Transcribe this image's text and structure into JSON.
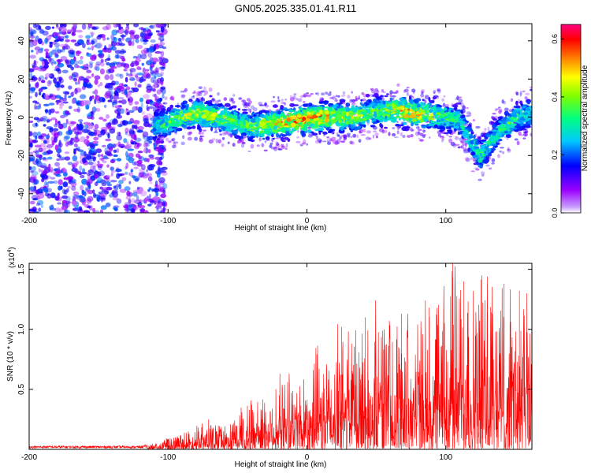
{
  "title": "GN05.2025.335.01.41.R11",
  "chart_data": [
    {
      "type": "heatmap",
      "xlabel": "Height of straight line (km)",
      "ylabel": "Frequency (Hz)",
      "xlim": [
        -200,
        162
      ],
      "ylim": [
        -50,
        49
      ],
      "xticks": [
        -200,
        -100,
        0,
        100
      ],
      "xtick_labels": [
        "-200",
        "-100",
        "0",
        "100"
      ],
      "yticks": [
        -40,
        -20,
        0,
        20,
        40
      ],
      "ytick_labels": [
        "-40",
        "-20",
        "0",
        "20",
        "40"
      ],
      "colorbar": {
        "label": "Normalized spectral amplitude",
        "range": [
          0.0,
          0.65
        ],
        "ticks": [
          0.0,
          0.2,
          0.4,
          0.6
        ],
        "tick_labels": [
          "0.0",
          "0.2",
          "0.4",
          "0.6"
        ],
        "colormap": [
          "#ffffff",
          "#9c00ff",
          "#0000ff",
          "#00c8ff",
          "#00ff80",
          "#80ff00",
          "#ffff00",
          "#ff8000",
          "#ff0000",
          "#ff0080"
        ]
      },
      "noise_region": {
        "x": [
          -200,
          -110
        ],
        "y": [
          -50,
          49
        ],
        "level": 0.12
      },
      "signal_trace": {
        "x": [
          -110,
          -100,
          -90,
          -80,
          -70,
          -60,
          -50,
          -40,
          -30,
          -20,
          -10,
          0,
          10,
          20,
          30,
          40,
          50,
          60,
          70,
          80,
          90,
          100,
          110,
          115,
          120,
          125,
          130,
          135,
          140,
          145,
          150,
          155,
          162
        ],
        "y": [
          -4,
          -3,
          0,
          2,
          1,
          -1,
          -3,
          -5,
          -4,
          -3,
          -2,
          -1,
          0,
          0,
          0,
          1,
          3,
          4,
          3,
          2,
          1,
          0,
          -2,
          -8,
          -15,
          -20,
          -15,
          -10,
          -6,
          -4,
          -1,
          1,
          2
        ],
        "peak_amplitude": [
          0.3,
          0.35,
          0.4,
          0.45,
          0.4,
          0.4,
          0.35,
          0.4,
          0.45,
          0.5,
          0.55,
          0.6,
          0.55,
          0.45,
          0.45,
          0.4,
          0.35,
          0.45,
          0.55,
          0.5,
          0.4,
          0.35,
          0.3,
          0.3,
          0.3,
          0.35,
          0.3,
          0.3,
          0.3,
          0.35,
          0.35,
          0.3,
          0.3
        ]
      }
    },
    {
      "type": "line",
      "xlabel": "Height of straight line (km)",
      "ylabel": "SNR (10 * v/v)",
      "y_multiplier_label": "(x10",
      "y_multiplier_exponent": "4",
      "xlim": [
        -200,
        162
      ],
      "ylim": [
        0,
        15500
      ],
      "xticks": [
        -200,
        -100,
        0,
        100
      ],
      "xtick_labels": [
        "-200",
        "-100",
        "0",
        "100"
      ],
      "yticks": [
        5000,
        10000,
        15000
      ],
      "ytick_labels": [
        "0.5",
        "1.0",
        "1.5"
      ],
      "series_color": "#ff0000",
      "envelope": {
        "x": [
          -200,
          -120,
          -110,
          -100,
          -90,
          -80,
          -70,
          -60,
          -50,
          -45,
          -40,
          -30,
          -20,
          -10,
          0,
          10,
          20,
          30,
          40,
          50,
          60,
          70,
          80,
          90,
          100,
          105,
          110,
          120,
          125,
          130,
          140,
          150,
          162
        ],
        "y": [
          300,
          300,
          500,
          1000,
          1400,
          2000,
          2200,
          2200,
          2700,
          4200,
          4500,
          4800,
          5500,
          6200,
          6800,
          8000,
          8800,
          10000,
          10500,
          10800,
          11200,
          11200,
          11500,
          11800,
          12500,
          15500,
          14000,
          13500,
          13800,
          14500,
          13800,
          13200,
          11000
        ]
      },
      "peaks": [
        {
          "x": 105,
          "y": 15500
        },
        {
          "x": 126,
          "y": 14500
        },
        {
          "x": 113,
          "y": 14000
        },
        {
          "x": 142,
          "y": 13800
        },
        {
          "x": 153,
          "y": 13200
        },
        {
          "x": 68,
          "y": 11300
        },
        {
          "x": 42,
          "y": 11000
        },
        {
          "x": 25,
          "y": 10200
        },
        {
          "x": 88,
          "y": 11800
        }
      ]
    }
  ]
}
